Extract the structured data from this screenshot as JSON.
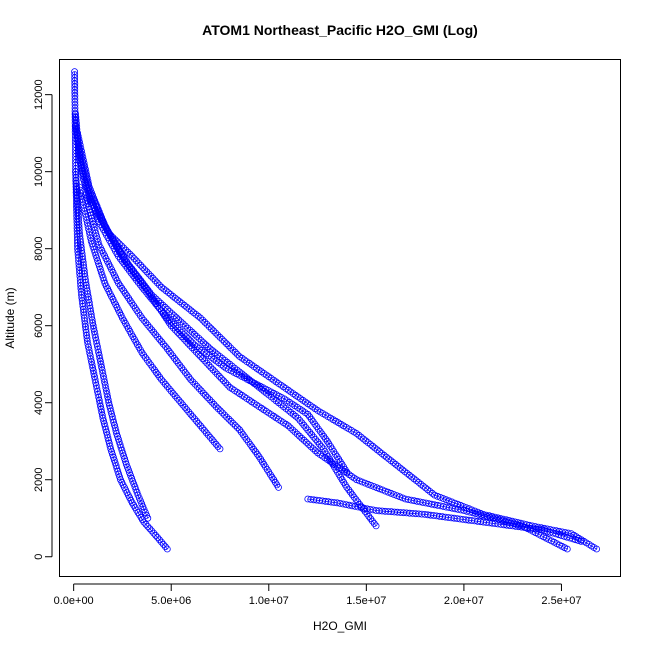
{
  "chart_data": {
    "type": "scatter",
    "title": "ATOM1 Northeast_Pacific H2O_GMI (Log)",
    "xlabel": "H2O_GMI",
    "ylabel": "Altitude (m)",
    "xlim": [
      -700000,
      28000000
    ],
    "ylim": [
      -500,
      12900
    ],
    "x_ticks": [
      0,
      5000000,
      10000000,
      15000000,
      20000000,
      25000000
    ],
    "x_tick_labels": [
      "0.0e+00",
      "5.0e+06",
      "1.0e+07",
      "1.5e+07",
      "2.0e+07",
      "2.5e+07"
    ],
    "y_ticks": [
      0,
      2000,
      4000,
      6000,
      8000,
      10000,
      12000
    ],
    "y_tick_labels": [
      "0",
      "2000",
      "4000",
      "6000",
      "8000",
      "10000",
      "12000"
    ],
    "grid": false,
    "marker": "open-circle",
    "color": "#0000ff",
    "series": [
      {
        "x": [
          4800000,
          4300000,
          3600000,
          3000000,
          2400000,
          1900000,
          1500000,
          1100000,
          700000,
          400000,
          200000,
          100000,
          50000
        ],
        "y": [
          200,
          500,
          900,
          1400,
          2000,
          2800,
          3600,
          4600,
          5600,
          6800,
          8000,
          10000,
          12600
        ]
      },
      {
        "x": [
          3800000,
          3300000,
          2700000,
          2200000,
          1800000,
          1400000,
          1000000,
          600000,
          300000,
          100000
        ],
        "y": [
          1000,
          1600,
          2400,
          3200,
          4000,
          5000,
          6000,
          7200,
          8400,
          10000
        ]
      },
      {
        "x": [
          26800000,
          25500000,
          23500000,
          21000000,
          18500000,
          16500000,
          14500000,
          12500000,
          10500000,
          8500000,
          6500000,
          4500000,
          3000000,
          1800000,
          900000,
          300000,
          100000
        ],
        "y": [
          200,
          600,
          800,
          1100,
          1600,
          2400,
          3200,
          3800,
          4500,
          5200,
          6200,
          7000,
          7800,
          8400,
          9200,
          10300,
          11500
        ]
      },
      {
        "x": [
          25300000,
          23000000,
          20000000,
          17000000,
          14500000,
          12500000,
          11000000,
          9500000,
          8000000,
          6500000,
          5000000,
          3800000,
          2600000,
          1600000,
          800000,
          200000
        ],
        "y": [
          200,
          800,
          1200,
          1500,
          2000,
          2700,
          3400,
          3900,
          4400,
          5200,
          6000,
          6900,
          7700,
          8600,
          9600,
          11000
        ]
      },
      {
        "x": [
          15500000,
          14000000,
          12800000,
          11500000,
          10000000,
          8500000,
          7000000,
          5500000,
          4000000,
          2800000,
          1700000,
          800000,
          200000
        ],
        "y": [
          800,
          1800,
          2800,
          3600,
          4200,
          4800,
          5400,
          6100,
          6800,
          7600,
          8500,
          9500,
          10800
        ]
      },
      {
        "x": [
          14000000,
          13000000,
          12000000,
          10800000,
          9300000,
          7800000,
          6200000,
          4800000,
          3500000,
          2300000,
          1300000,
          500000,
          100000
        ],
        "y": [
          2200,
          3000,
          3700,
          4100,
          4500,
          4900,
          5500,
          6200,
          7000,
          7800,
          8700,
          9800,
          11200
        ]
      },
      {
        "x": [
          7500000,
          6500000,
          5500000,
          4500000,
          3500000,
          2500000,
          1600000,
          900000,
          300000
        ],
        "y": [
          2800,
          3400,
          4000,
          4600,
          5300,
          6200,
          7100,
          8200,
          9600
        ]
      },
      {
        "x": [
          10500000,
          9500000,
          8500000,
          7300000,
          6000000,
          4800000,
          3500000,
          2300000,
          1300000,
          600000
        ],
        "y": [
          1800,
          2600,
          3300,
          3900,
          4600,
          5400,
          6200,
          7100,
          8100,
          9400
        ]
      },
      {
        "x": [
          26000000,
          24000000,
          21000000,
          18000000,
          15500000,
          13500000,
          12000000
        ],
        "y": [
          400,
          700,
          900,
          1100,
          1200,
          1400,
          1500
        ]
      }
    ]
  }
}
